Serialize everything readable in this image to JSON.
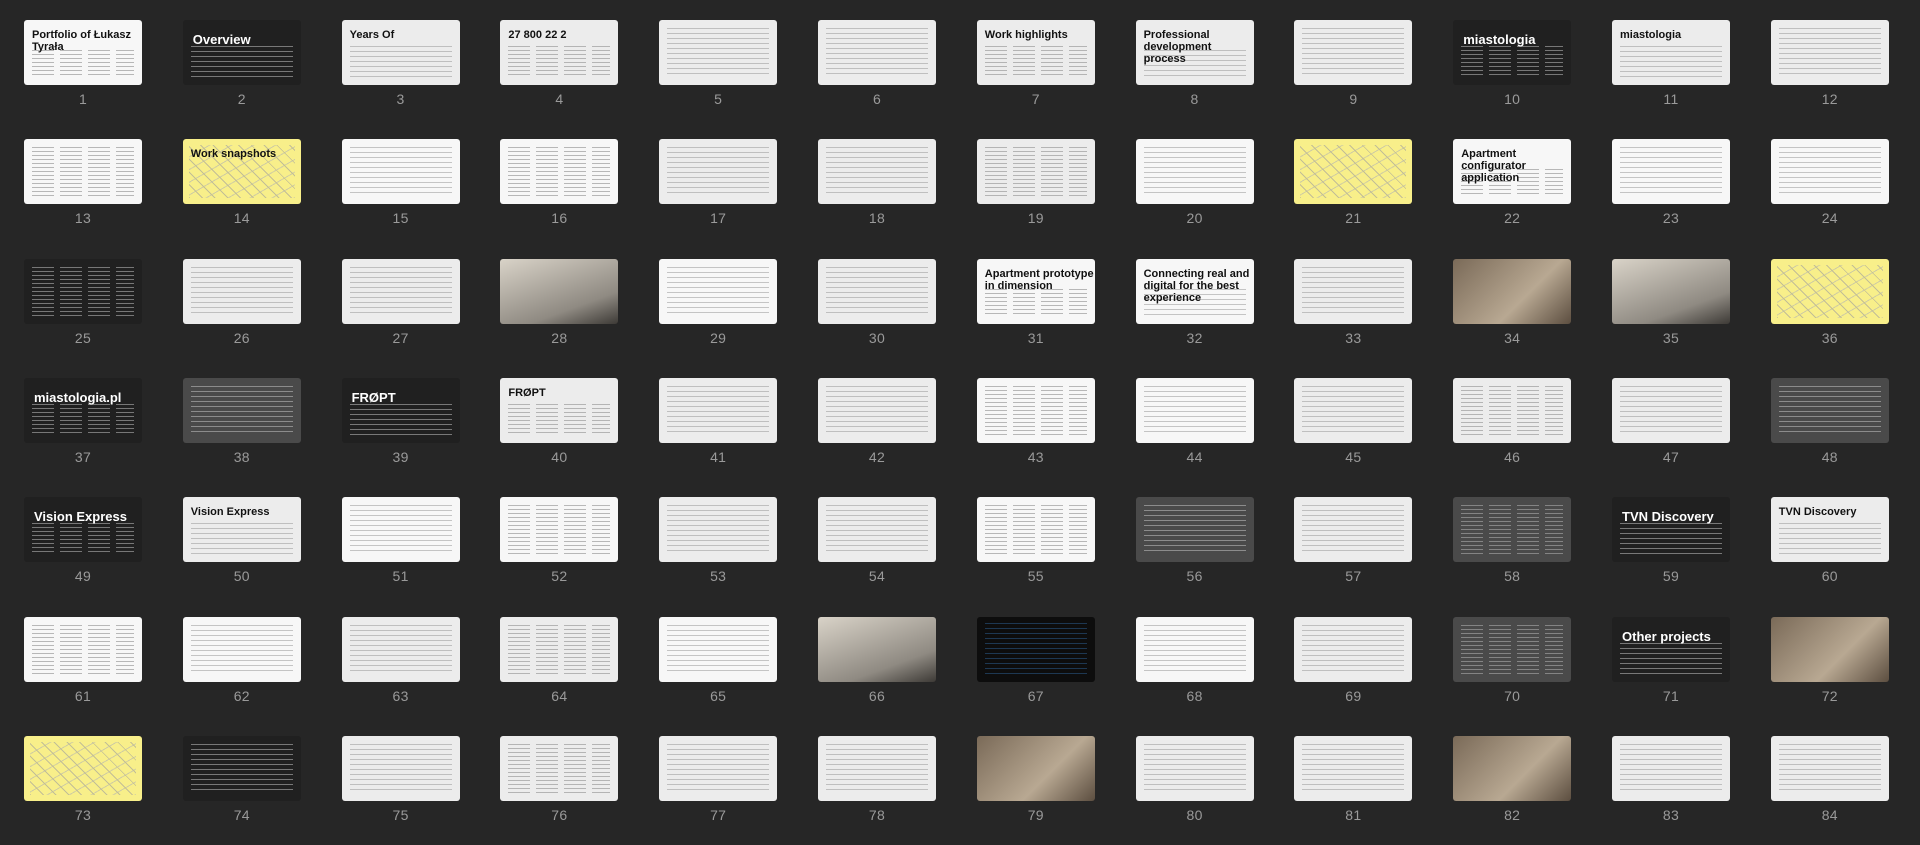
{
  "slides": [
    {
      "num": "1",
      "title": "Portfolio of Łukasz Tyrała",
      "style": "white"
    },
    {
      "num": "2",
      "title": "Overview",
      "style": "dark"
    },
    {
      "num": "3",
      "title": "Years Of",
      "style": "light"
    },
    {
      "num": "4",
      "title": "27  800  22  2",
      "style": "light"
    },
    {
      "num": "5",
      "title": "",
      "style": "light"
    },
    {
      "num": "6",
      "title": "",
      "style": "light"
    },
    {
      "num": "7",
      "title": "Work highlights",
      "style": "light"
    },
    {
      "num": "8",
      "title": "Professional development process",
      "style": "light"
    },
    {
      "num": "9",
      "title": "",
      "style": "light"
    },
    {
      "num": "10",
      "title": "miastologia",
      "style": "dark"
    },
    {
      "num": "11",
      "title": "miastologia",
      "style": "light"
    },
    {
      "num": "12",
      "title": "",
      "style": "light"
    },
    {
      "num": "13",
      "title": "",
      "style": "white"
    },
    {
      "num": "14",
      "title": "Work snapshots",
      "style": "yellow"
    },
    {
      "num": "15",
      "title": "",
      "style": "white"
    },
    {
      "num": "16",
      "title": "",
      "style": "white"
    },
    {
      "num": "17",
      "title": "",
      "style": "light"
    },
    {
      "num": "18",
      "title": "",
      "style": "light"
    },
    {
      "num": "19",
      "title": "",
      "style": "light"
    },
    {
      "num": "20",
      "title": "",
      "style": "white"
    },
    {
      "num": "21",
      "title": "",
      "style": "yellow"
    },
    {
      "num": "22",
      "title": "Apartment configurator application",
      "style": "white"
    },
    {
      "num": "23",
      "title": "",
      "style": "white"
    },
    {
      "num": "24",
      "title": "",
      "style": "white"
    },
    {
      "num": "25",
      "title": "",
      "style": "dark"
    },
    {
      "num": "26",
      "title": "",
      "style": "light"
    },
    {
      "num": "27",
      "title": "",
      "style": "light"
    },
    {
      "num": "28",
      "title": "",
      "style": "photo2"
    },
    {
      "num": "29",
      "title": "",
      "style": "white"
    },
    {
      "num": "30",
      "title": "",
      "style": "light"
    },
    {
      "num": "31",
      "title": "Apartment prototype in dimension",
      "style": "white"
    },
    {
      "num": "32",
      "title": "Connecting real and digital for the best experience",
      "style": "white"
    },
    {
      "num": "33",
      "title": "",
      "style": "light"
    },
    {
      "num": "34",
      "title": "",
      "style": "photo"
    },
    {
      "num": "35",
      "title": "",
      "style": "photo2"
    },
    {
      "num": "36",
      "title": "",
      "style": "yellow"
    },
    {
      "num": "37",
      "title": "miastologia.pl",
      "style": "dark"
    },
    {
      "num": "38",
      "title": "",
      "style": "gray"
    },
    {
      "num": "39",
      "title": "FRØPT",
      "style": "dark"
    },
    {
      "num": "40",
      "title": "FRØPT",
      "style": "light"
    },
    {
      "num": "41",
      "title": "",
      "style": "light"
    },
    {
      "num": "42",
      "title": "",
      "style": "light"
    },
    {
      "num": "43",
      "title": "",
      "style": "white"
    },
    {
      "num": "44",
      "title": "",
      "style": "white"
    },
    {
      "num": "45",
      "title": "",
      "style": "light"
    },
    {
      "num": "46",
      "title": "",
      "style": "light"
    },
    {
      "num": "47",
      "title": "",
      "style": "light"
    },
    {
      "num": "48",
      "title": "",
      "style": "gray"
    },
    {
      "num": "49",
      "title": "Vision Express",
      "style": "dark"
    },
    {
      "num": "50",
      "title": "Vision Express",
      "style": "light"
    },
    {
      "num": "51",
      "title": "",
      "style": "white"
    },
    {
      "num": "52",
      "title": "",
      "style": "white"
    },
    {
      "num": "53",
      "title": "",
      "style": "light"
    },
    {
      "num": "54",
      "title": "",
      "style": "light"
    },
    {
      "num": "55",
      "title": "",
      "style": "white"
    },
    {
      "num": "56",
      "title": "",
      "style": "gray"
    },
    {
      "num": "57",
      "title": "",
      "style": "light"
    },
    {
      "num": "58",
      "title": "",
      "style": "gray"
    },
    {
      "num": "59",
      "title": "TVN Discovery",
      "style": "dark"
    },
    {
      "num": "60",
      "title": "TVN Discovery",
      "style": "light"
    },
    {
      "num": "61",
      "title": "",
      "style": "white"
    },
    {
      "num": "62",
      "title": "",
      "style": "white"
    },
    {
      "num": "63",
      "title": "",
      "style": "light"
    },
    {
      "num": "64",
      "title": "",
      "style": "light"
    },
    {
      "num": "65",
      "title": "",
      "style": "white"
    },
    {
      "num": "66",
      "title": "",
      "style": "photo2"
    },
    {
      "num": "67",
      "title": "",
      "style": "black"
    },
    {
      "num": "68",
      "title": "",
      "style": "white"
    },
    {
      "num": "69",
      "title": "",
      "style": "light"
    },
    {
      "num": "70",
      "title": "",
      "style": "gray"
    },
    {
      "num": "71",
      "title": "Other projects",
      "style": "dark"
    },
    {
      "num": "72",
      "title": "",
      "style": "photo"
    },
    {
      "num": "73",
      "title": "",
      "style": "yellow"
    },
    {
      "num": "74",
      "title": "",
      "style": "dark"
    },
    {
      "num": "75",
      "title": "",
      "style": "light"
    },
    {
      "num": "76",
      "title": "",
      "style": "light"
    },
    {
      "num": "77",
      "title": "",
      "style": "light"
    },
    {
      "num": "78",
      "title": "",
      "style": "light"
    },
    {
      "num": "79",
      "title": "",
      "style": "photo"
    },
    {
      "num": "80",
      "title": "",
      "style": "light"
    },
    {
      "num": "81",
      "title": "",
      "style": "light"
    },
    {
      "num": "82",
      "title": "",
      "style": "photo"
    },
    {
      "num": "83",
      "title": "",
      "style": "light"
    },
    {
      "num": "84",
      "title": "",
      "style": "light"
    }
  ]
}
